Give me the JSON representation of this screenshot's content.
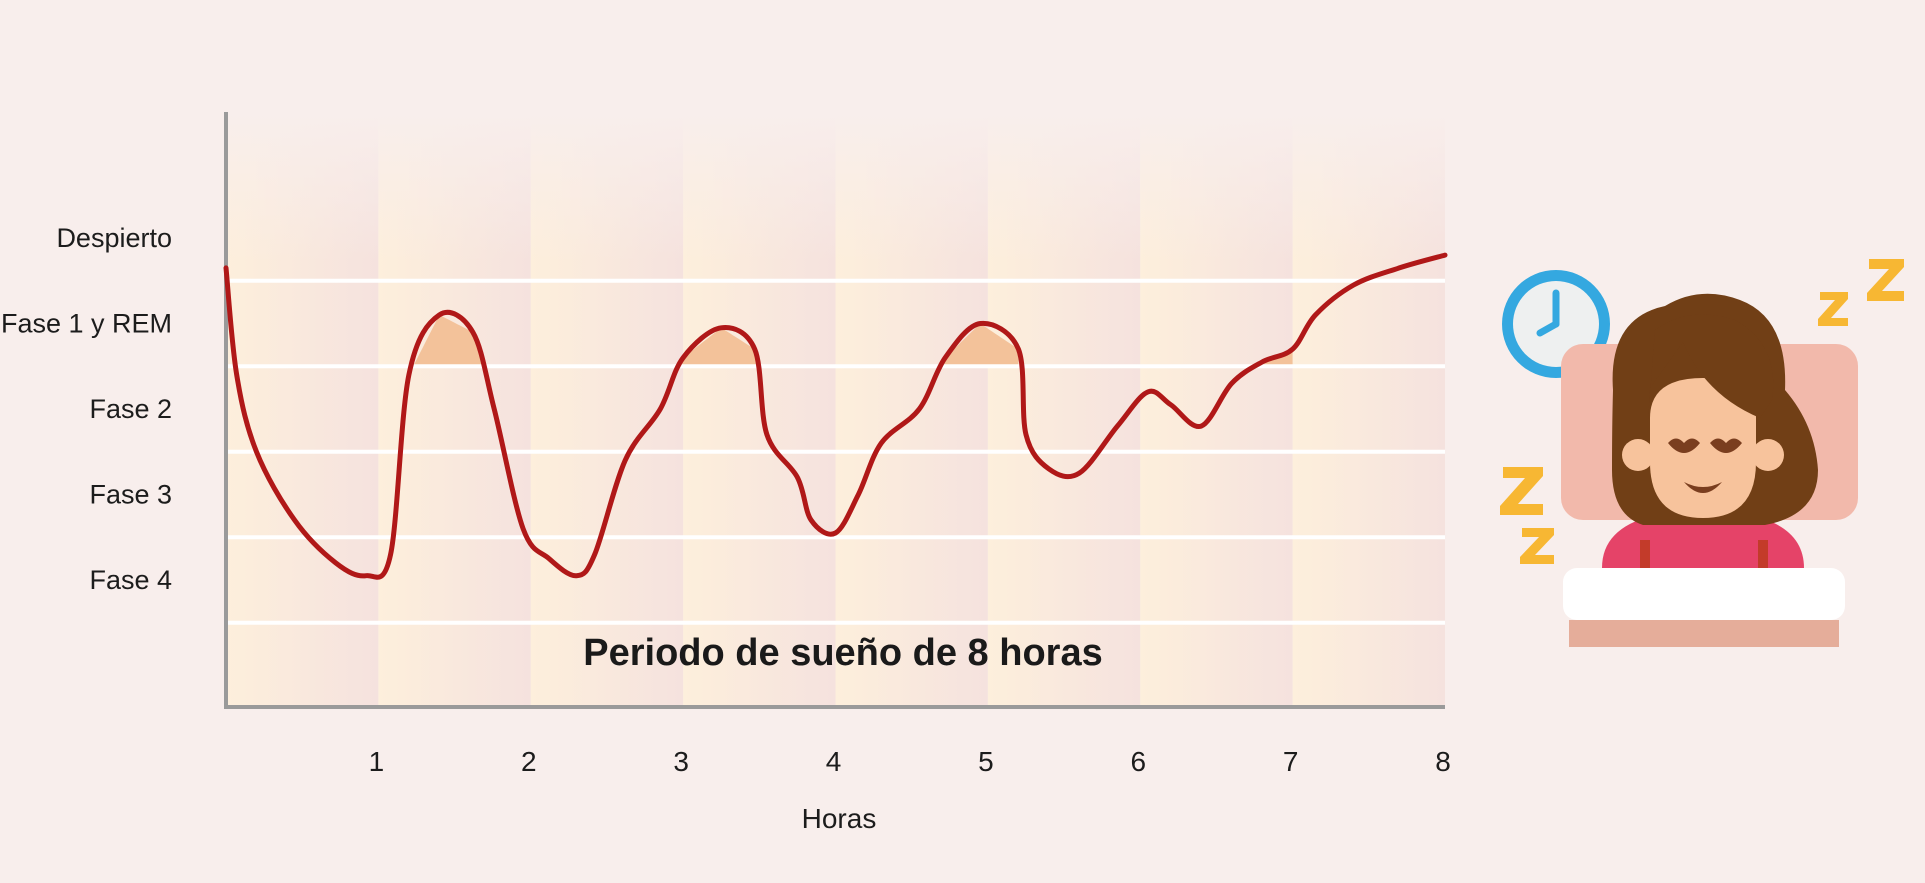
{
  "chart_data": {
    "type": "line",
    "title": "",
    "annotation": "Periodo de sueño de 8 horas",
    "xlabel": "Horas",
    "ylabel": "",
    "xlim": [
      0,
      8
    ],
    "x_ticks": [
      "1",
      "2",
      "3",
      "4",
      "5",
      "6",
      "7",
      "8"
    ],
    "y_categories": [
      "Despierto",
      "Fase 1 y REM",
      "Fase 2",
      "Fase 3",
      "Fase 4"
    ],
    "grid": true,
    "colors": {
      "line": "#b01818",
      "rem_fill": "#f3c29a",
      "axis": "#9a9a9a",
      "band_light": "#fdeedd",
      "band_dark": "#f6e3df"
    },
    "rem_highlights": [
      [
        1.22,
        1.78
      ],
      [
        2.92,
        3.5
      ],
      [
        4.63,
        5.2
      ],
      [
        5.82,
        6.22
      ],
      [
        6.4,
        7.0
      ]
    ],
    "series": [
      {
        "points": [
          [
            0.0,
            0.35
          ],
          [
            0.07,
            1.6
          ],
          [
            0.2,
            2.5
          ],
          [
            0.45,
            3.3
          ],
          [
            0.72,
            3.8
          ],
          [
            0.92,
            3.95
          ],
          [
            1.08,
            3.7
          ],
          [
            1.2,
            1.6
          ],
          [
            1.4,
            0.9
          ],
          [
            1.62,
            1.1
          ],
          [
            1.76,
            2.0
          ],
          [
            1.95,
            3.4
          ],
          [
            2.12,
            3.75
          ],
          [
            2.3,
            3.95
          ],
          [
            2.42,
            3.7
          ],
          [
            2.62,
            2.6
          ],
          [
            2.85,
            2.0
          ],
          [
            3.0,
            1.4
          ],
          [
            3.25,
            1.05
          ],
          [
            3.47,
            1.3
          ],
          [
            3.55,
            2.3
          ],
          [
            3.75,
            2.8
          ],
          [
            3.84,
            3.3
          ],
          [
            4.0,
            3.45
          ],
          [
            4.15,
            3.0
          ],
          [
            4.3,
            2.4
          ],
          [
            4.55,
            2.0
          ],
          [
            4.72,
            1.4
          ],
          [
            4.95,
            1.0
          ],
          [
            5.2,
            1.3
          ],
          [
            5.25,
            2.3
          ],
          [
            5.4,
            2.7
          ],
          [
            5.6,
            2.75
          ],
          [
            5.85,
            2.2
          ],
          [
            6.05,
            1.8
          ],
          [
            6.2,
            1.95
          ],
          [
            6.4,
            2.2
          ],
          [
            6.6,
            1.7
          ],
          [
            6.8,
            1.45
          ],
          [
            7.0,
            1.3
          ],
          [
            7.15,
            0.9
          ],
          [
            7.4,
            0.55
          ],
          [
            7.7,
            0.35
          ],
          [
            8.0,
            0.2
          ]
        ]
      }
    ]
  }
}
